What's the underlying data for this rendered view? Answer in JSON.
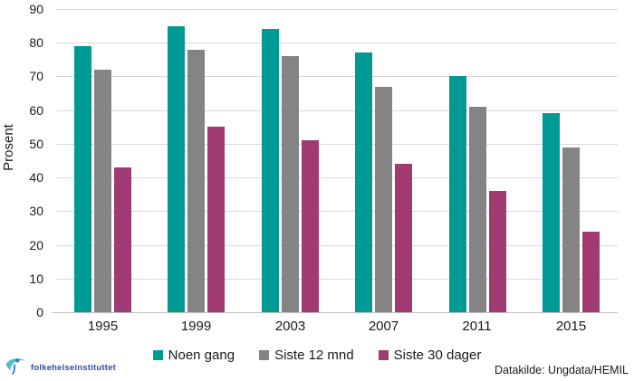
{
  "chart_data": {
    "type": "bar",
    "title": "",
    "xlabel": "",
    "ylabel": "Prosent",
    "ylim": [
      0,
      90
    ],
    "yticks": [
      0,
      10,
      20,
      30,
      40,
      50,
      60,
      70,
      80,
      90
    ],
    "grid": true,
    "legend_position": "bottom",
    "categories": [
      "1995",
      "1999",
      "2003",
      "2007",
      "2011",
      "2015"
    ],
    "series": [
      {
        "name": "Noen gang",
        "color": "#009a94",
        "values": [
          79,
          85,
          84,
          77,
          70,
          59
        ]
      },
      {
        "name": "Siste 12 mnd",
        "color": "#848484",
        "values": [
          72,
          78,
          76,
          67,
          61,
          49
        ]
      },
      {
        "name": "Siste 30 dager",
        "color": "#a23a72",
        "values": [
          43,
          55,
          51,
          44,
          36,
          24
        ]
      }
    ]
  },
  "footer": {
    "source_label": "Datakilde: Ungdata/HEMIL"
  },
  "branding": {
    "logo_text": "folkehelseinstituttet"
  }
}
